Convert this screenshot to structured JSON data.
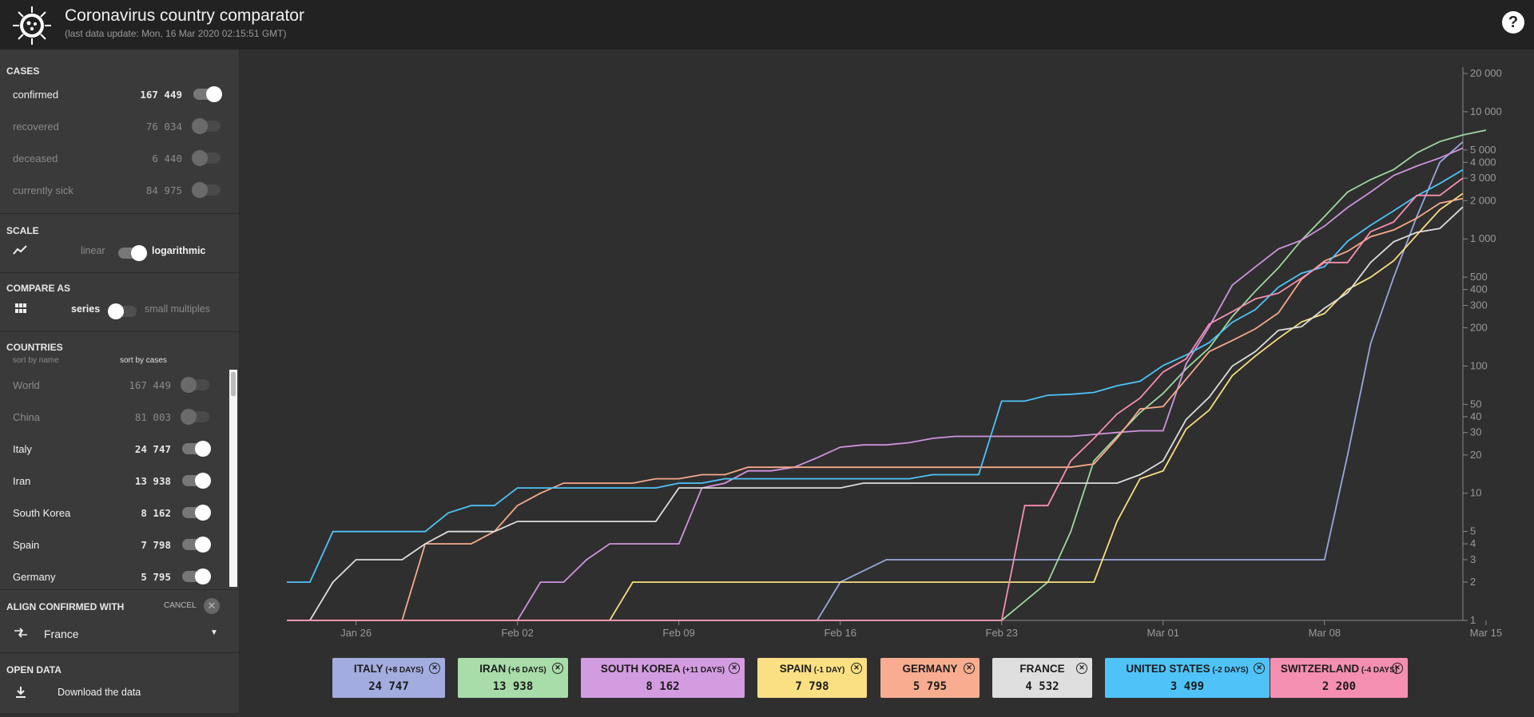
{
  "header": {
    "title": "Coronavirus country comparator",
    "subtitle": "(last data update: Mon, 16 Mar 2020 02:15:51 GMT)",
    "help": "?"
  },
  "sidebar": {
    "cases": {
      "title": "CASES",
      "items": [
        {
          "label": "confirmed",
          "value": "167 449",
          "on": true
        },
        {
          "label": "recovered",
          "value": "76 034",
          "on": false
        },
        {
          "label": "deceased",
          "value": "6 440",
          "on": false
        },
        {
          "label": "currently sick",
          "value": "84 975",
          "on": false
        }
      ]
    },
    "scale": {
      "title": "SCALE",
      "linear": "linear",
      "logarithmic": "logarithmic"
    },
    "compare": {
      "title": "COMPARE AS",
      "series": "series",
      "small_multiples": "small multiples"
    },
    "countries": {
      "title": "COUNTRIES",
      "sort_by_name": "sort by name",
      "sort_by_cases": "sort by cases",
      "items": [
        {
          "label": "World",
          "value": "167 449",
          "on": false
        },
        {
          "label": "China",
          "value": "81 003",
          "on": false
        },
        {
          "label": "Italy",
          "value": "24 747",
          "on": true
        },
        {
          "label": "Iran",
          "value": "13 938",
          "on": true
        },
        {
          "label": "South Korea",
          "value": "8 162",
          "on": true
        },
        {
          "label": "Spain",
          "value": "7 798",
          "on": true
        },
        {
          "label": "Germany",
          "value": "5 795",
          "on": true
        }
      ]
    },
    "align": {
      "title": "ALIGN CONFIRMED WITH",
      "cancel": "CANCEL",
      "selected": "France"
    },
    "open_data": {
      "title": "OPEN DATA",
      "download": "Download the data"
    }
  },
  "chart_data": {
    "type": "line",
    "y_scale": "log",
    "ylim": [
      1,
      20000
    ],
    "y_ticks": [
      "20 000",
      "10 000",
      "5 000",
      "4 000",
      "3 000",
      "2 000",
      "1 000",
      "500",
      "400",
      "300",
      "200",
      "100",
      "50",
      "40",
      "30",
      "20",
      "10",
      "5",
      "4",
      "3",
      "2",
      "1"
    ],
    "x_ticks": [
      "Jan 26",
      "Feb 02",
      "Feb 09",
      "Feb 16",
      "Feb 23",
      "Mar 01",
      "Mar 08",
      "Mar 15"
    ],
    "xlim": [
      -5,
      49
    ],
    "grid": false,
    "series": [
      {
        "name": "Italy",
        "color": "#9aa6de",
        "x": [
          -3,
          20,
          21,
          23,
          27,
          29,
          30,
          31,
          32,
          33,
          34,
          35,
          36,
          37,
          38,
          39,
          40,
          41,
          42,
          43,
          44,
          45,
          46,
          47,
          48
        ],
        "y": [
          1,
          1,
          2,
          3,
          3,
          3,
          3,
          3,
          3,
          3,
          3,
          3,
          3,
          3,
          3,
          3,
          3,
          3,
          3,
          20,
          150,
          500,
          1500,
          4000,
          5800
        ]
      },
      {
        "name": "Iran",
        "color": "#9fd89f",
        "x": [
          -3,
          28,
          30,
          31,
          32,
          33,
          34,
          35,
          36,
          37,
          38,
          39,
          40,
          41,
          42,
          43,
          44,
          45,
          46,
          47,
          48,
          49
        ],
        "y": [
          1,
          1,
          2,
          5,
          18,
          28,
          43,
          61,
          95,
          139,
          245,
          388,
          593,
          978,
          1501,
          2336,
          2922,
          3513,
          4747,
          5823,
          6566,
          7161
        ]
      },
      {
        "name": "South Korea",
        "color": "#cf93de",
        "x": [
          -3,
          7,
          8,
          9,
          10,
          11,
          12,
          13,
          14,
          15,
          16,
          17,
          18,
          19,
          20,
          21,
          22,
          23,
          24,
          25,
          26,
          27,
          28,
          29,
          30,
          31,
          32,
          33,
          34,
          35,
          36,
          37,
          38,
          39,
          40,
          41,
          42,
          43,
          44,
          45,
          46,
          47,
          48
        ],
        "y": [
          1,
          1,
          2,
          2,
          3,
          4,
          4,
          4,
          4,
          11,
          12,
          15,
          15,
          16,
          19,
          23,
          24,
          24,
          25,
          27,
          28,
          28,
          28,
          28,
          28,
          28,
          29,
          30,
          31,
          31,
          104,
          204,
          433,
          602,
          833,
          977,
          1261,
          1766,
          2337,
          3150,
          3736,
          4335,
          5186
        ]
      },
      {
        "name": "Spain",
        "color": "#f7df7f",
        "x": [
          -3,
          11,
          12,
          13,
          14,
          15,
          16,
          17,
          18,
          19,
          20,
          21,
          22,
          23,
          24,
          25,
          26,
          27,
          28,
          29,
          30,
          31,
          32,
          33,
          34,
          35,
          36,
          37,
          38,
          39,
          40,
          41,
          42,
          43,
          44,
          45,
          46,
          47,
          48
        ],
        "y": [
          1,
          1,
          2,
          2,
          2,
          2,
          2,
          2,
          2,
          2,
          2,
          2,
          2,
          2,
          2,
          2,
          2,
          2,
          2,
          2,
          2,
          2,
          2,
          6,
          13,
          15,
          32,
          45,
          84,
          120,
          165,
          222,
          259,
          400,
          500,
          673,
          1073,
          1695,
          2277
        ]
      },
      {
        "name": "Germany",
        "color": "#f7a98a",
        "x": [
          -3,
          2,
          3,
          4,
          5,
          6,
          7,
          8,
          9,
          10,
          11,
          12,
          13,
          14,
          15,
          16,
          17,
          18,
          19,
          20,
          21,
          22,
          23,
          24,
          25,
          26,
          27,
          28,
          29,
          30,
          31,
          32,
          33,
          34,
          35,
          36,
          37,
          38,
          39,
          40,
          41,
          42,
          43,
          44,
          45,
          46,
          47,
          48
        ],
        "y": [
          1,
          1,
          4,
          4,
          4,
          5,
          8,
          10,
          12,
          12,
          12,
          12,
          13,
          13,
          14,
          14,
          16,
          16,
          16,
          16,
          16,
          16,
          16,
          16,
          16,
          16,
          16,
          16,
          16,
          16,
          16,
          17,
          27,
          46,
          48,
          79,
          130,
          159,
          196,
          262,
          482,
          670,
          799,
          1040,
          1176,
          1457,
          1908,
          2078
        ]
      },
      {
        "name": "France",
        "color": "#dcdcdc",
        "x": [
          -3,
          -2,
          -1,
          0,
          1,
          2,
          3,
          4,
          5,
          6,
          7,
          8,
          9,
          10,
          11,
          12,
          13,
          14,
          15,
          16,
          17,
          18,
          19,
          20,
          21,
          22,
          23,
          24,
          25,
          26,
          27,
          28,
          29,
          30,
          31,
          32,
          33,
          34,
          35,
          36,
          37,
          38,
          39,
          40,
          41,
          42,
          43,
          44,
          45,
          46,
          47,
          48
        ],
        "y": [
          1,
          1,
          2,
          3,
          3,
          3,
          4,
          5,
          5,
          5,
          6,
          6,
          6,
          6,
          6,
          6,
          6,
          11,
          11,
          11,
          11,
          11,
          11,
          11,
          11,
          12,
          12,
          12,
          12,
          12,
          12,
          12,
          12,
          12,
          12,
          12,
          12,
          14,
          18,
          38,
          57,
          100,
          130,
          191,
          204,
          285,
          377,
          653,
          949,
          1126,
          1209,
          1784
        ]
      },
      {
        "name": "United States",
        "color": "#4fc3f7",
        "x": [
          -3,
          -2,
          -1,
          0,
          1,
          2,
          3,
          4,
          5,
          6,
          7,
          8,
          9,
          10,
          11,
          12,
          13,
          14,
          15,
          16,
          17,
          18,
          19,
          20,
          21,
          22,
          23,
          24,
          25,
          26,
          27,
          28,
          29,
          30,
          31,
          32,
          33,
          34,
          35,
          36,
          37,
          38,
          39,
          40,
          41,
          42,
          43,
          44,
          45,
          46,
          47,
          48
        ],
        "y": [
          2,
          2,
          5,
          5,
          5,
          5,
          5,
          7,
          8,
          8,
          11,
          11,
          11,
          11,
          11,
          11,
          11,
          12,
          12,
          13,
          13,
          13,
          13,
          13,
          13,
          13,
          13,
          13,
          14,
          14,
          14,
          53,
          53,
          59,
          60,
          62,
          70,
          76,
          101,
          122,
          153,
          221,
          278,
          417,
          537,
          605,
          959,
          1281,
          1663,
          2179,
          2726,
          3499
        ]
      },
      {
        "name": "Switzerland",
        "color": "#f58fb0",
        "x": [
          -3,
          28,
          29,
          30,
          31,
          32,
          33,
          34,
          35,
          36,
          37,
          38,
          39,
          40,
          41,
          42,
          43,
          44,
          45,
          46,
          47,
          48
        ],
        "y": [
          1,
          1,
          8,
          8,
          18,
          27,
          42,
          56,
          90,
          114,
          214,
          268,
          337,
          374,
          491,
          652,
          652,
          1139,
          1359,
          2200,
          2200,
          3010
        ]
      }
    ]
  },
  "legend": [
    {
      "name": "ITALY",
      "shift": "(+8 DAYS)",
      "count": "24 747",
      "color": "#a3acdf"
    },
    {
      "name": "IRAN",
      "shift": "(+6 DAYS)",
      "count": "13 938",
      "color": "#a8dca8"
    },
    {
      "name": "SOUTH KOREA",
      "shift": "(+11 DAYS)",
      "count": "8 162",
      "color": "#d39ce0"
    },
    {
      "name": "SPAIN",
      "shift": "(-1 DAY)",
      "count": "7 798",
      "color": "#fbe083"
    },
    {
      "name": "GERMANY",
      "shift": "",
      "count": "5 795",
      "color": "#f8ad91"
    },
    {
      "name": "FRANCE",
      "shift": "",
      "count": "4 532",
      "color": "#dedede"
    },
    {
      "name": "UNITED STATES",
      "shift": "(-2 DAYS)",
      "count": "3 499",
      "color": "#4fc3f7"
    },
    {
      "name": "SWITZERLAND",
      "shift": "(-4 DAYS)",
      "count": "2 200",
      "color": "#f48fb1"
    }
  ]
}
